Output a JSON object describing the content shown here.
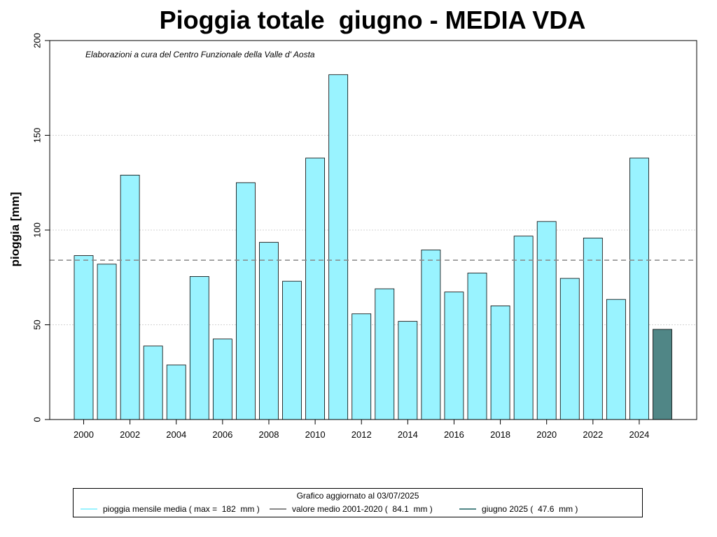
{
  "title": "Pioggia totale  giugno - MEDIA VDA",
  "subtitle": "Elaborazioni a cura del Centro Funzionale della Valle d' Aosta",
  "ylabel": "pioggia [mm]",
  "legend": {
    "title": "Grafico aggiornato al 03/07/2025",
    "items": [
      {
        "label": "pioggia mensile media ( max =  182  mm )",
        "color": "#99f3ff"
      },
      {
        "label": "valore medio 2001-2020 (  84.1  mm )",
        "color": "#888888"
      },
      {
        "label": "giugno 2025 (  47.6  mm )",
        "color": "#508686"
      }
    ]
  },
  "colors": {
    "bar": "#99f3ff",
    "bar_current": "#508686",
    "mean_line": "#888888"
  },
  "chart_data": {
    "type": "bar",
    "categories": [
      "2000",
      "2001",
      "2002",
      "2003",
      "2004",
      "2005",
      "2006",
      "2007",
      "2008",
      "2009",
      "2010",
      "2011",
      "2012",
      "2013",
      "2014",
      "2015",
      "2016",
      "2017",
      "2018",
      "2019",
      "2020",
      "2021",
      "2022",
      "2023",
      "2024",
      "2025"
    ],
    "x_tick_labels": [
      "2000",
      "2002",
      "2004",
      "2006",
      "2008",
      "2010",
      "2012",
      "2014",
      "2016",
      "2018",
      "2020",
      "2022",
      "2024"
    ],
    "values": [
      86.5,
      82,
      129,
      38.8,
      28.8,
      75.5,
      42.5,
      125,
      93.5,
      73,
      138,
      182,
      55.8,
      69,
      51.8,
      89.5,
      67.3,
      77.3,
      60,
      96.8,
      104.5,
      74.5,
      95.8,
      63.4,
      138,
      47.6
    ],
    "ylim": [
      0,
      200
    ],
    "y_ticks": [
      0,
      50,
      100,
      150,
      200
    ],
    "mean_value": 84.1,
    "highlight_category": "2025",
    "grid": true
  }
}
